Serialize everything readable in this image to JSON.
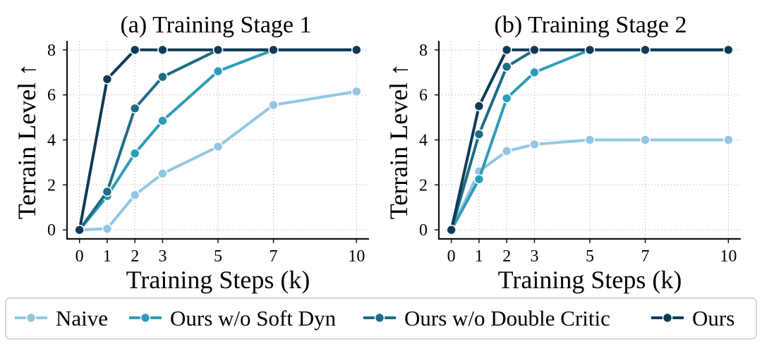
{
  "chart_data": [
    {
      "type": "line",
      "title": "(a) Training Stage 1",
      "xlabel": "Training Steps (k)",
      "ylabel": "Terrain Level ↑",
      "x": [
        0,
        1,
        2,
        3,
        5,
        7,
        10
      ],
      "xticks": [
        "0",
        "1",
        "2",
        "3",
        "5",
        "7",
        "10"
      ],
      "yticks": [
        "0",
        "2",
        "4",
        "6",
        "8"
      ],
      "ylim": [
        -0.4,
        8.4
      ],
      "grid": true,
      "series": [
        {
          "name": "Naive",
          "color": "#92c6e4",
          "values": [
            0.0,
            0.05,
            1.55,
            2.5,
            3.7,
            5.55,
            6.15
          ]
        },
        {
          "name": "Ours w/o Soft Dyn",
          "color": "#2e9cb7",
          "values": [
            0.0,
            1.5,
            3.4,
            4.85,
            7.05,
            8.0,
            8.0
          ]
        },
        {
          "name": "Ours w/o Double Critic",
          "color": "#1e6b87",
          "values": [
            0.0,
            1.7,
            5.4,
            6.8,
            8.0,
            8.0,
            8.0
          ]
        },
        {
          "name": "Ours",
          "color": "#0e3a56",
          "values": [
            0.0,
            6.7,
            8.0,
            8.0,
            8.0,
            8.0,
            8.0
          ]
        }
      ]
    },
    {
      "type": "line",
      "title": "(b) Training Stage 2",
      "xlabel": "Training Steps (k)",
      "ylabel": "Terrain Level ↑",
      "x": [
        0,
        1,
        2,
        3,
        5,
        7,
        10
      ],
      "xticks": [
        "0",
        "1",
        "2",
        "3",
        "5",
        "7",
        "10"
      ],
      "yticks": [
        "0",
        "2",
        "4",
        "6",
        "8"
      ],
      "ylim": [
        -0.4,
        8.4
      ],
      "grid": true,
      "series": [
        {
          "name": "Naive",
          "color": "#92c6e4",
          "values": [
            0.0,
            2.6,
            3.5,
            3.8,
            4.0,
            4.0,
            4.0
          ]
        },
        {
          "name": "Ours w/o Soft Dyn",
          "color": "#2e9cb7",
          "values": [
            0.0,
            2.25,
            5.85,
            7.0,
            8.0,
            8.0,
            8.0
          ]
        },
        {
          "name": "Ours w/o Double Critic",
          "color": "#1e6b87",
          "values": [
            0.0,
            4.25,
            7.25,
            8.0,
            8.0,
            8.0,
            8.0
          ]
        },
        {
          "name": "Ours",
          "color": "#0e3a56",
          "values": [
            0.0,
            5.5,
            8.0,
            8.0,
            8.0,
            8.0,
            8.0
          ]
        }
      ]
    }
  ],
  "legend": {
    "placement": "bottom",
    "entries": [
      "Naive",
      "Ours w/o Soft Dyn",
      "Ours w/o Double Critic",
      "Ours"
    ]
  }
}
